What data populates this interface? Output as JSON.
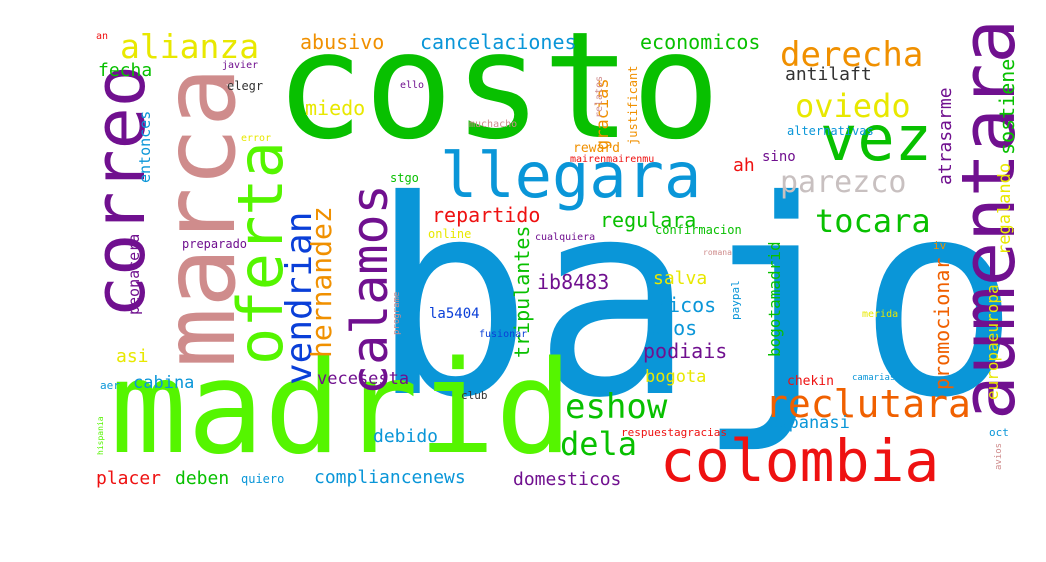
{
  "word_cloud": {
    "words": [
      {
        "text": "bajo",
        "color": "#0a96d8",
        "rotate": false
      },
      {
        "text": "costo",
        "color": "#08c000",
        "rotate": false
      },
      {
        "text": "madrid",
        "color": "#55f500",
        "rotate": false
      },
      {
        "text": "marca",
        "color": "#cf8c8c",
        "rotate": true
      },
      {
        "text": "correo",
        "color": "#70108f",
        "rotate": true
      },
      {
        "text": "aumentara",
        "color": "#70108f",
        "rotate": true
      },
      {
        "text": "oferta",
        "color": "#55f500",
        "rotate": true
      },
      {
        "text": "colombia",
        "color": "#ee1111",
        "rotate": false
      },
      {
        "text": "llegara",
        "color": "#0a96d8",
        "rotate": false
      },
      {
        "text": "vez",
        "color": "#08c000",
        "rotate": false
      },
      {
        "text": "calamos",
        "color": "#70108f",
        "rotate": true
      },
      {
        "text": "vendrian",
        "color": "#0a3fd8",
        "rotate": true
      },
      {
        "text": "hernandez",
        "color": "#f09000",
        "rotate": true
      },
      {
        "text": "reclutara",
        "color": "#f06000",
        "rotate": false
      },
      {
        "text": "eshow",
        "color": "#08c000",
        "rotate": false
      },
      {
        "text": "dela",
        "color": "#08c000",
        "rotate": false
      },
      {
        "text": "derecha",
        "color": "#f09000",
        "rotate": false
      },
      {
        "text": "oviedo",
        "color": "#e8e800",
        "rotate": false
      },
      {
        "text": "parezco",
        "color": "#c8c0c0",
        "rotate": false
      },
      {
        "text": "tocara",
        "color": "#08c000",
        "rotate": false
      },
      {
        "text": "alianza",
        "color": "#e8e800",
        "rotate": false
      },
      {
        "text": "cancelaciones",
        "color": "#0a96d8",
        "rotate": false
      },
      {
        "text": "economicos",
        "color": "#08c000",
        "rotate": false
      },
      {
        "text": "abusivo",
        "color": "#f09000",
        "rotate": false
      },
      {
        "text": "antilaft",
        "color": "#333333",
        "rotate": false
      },
      {
        "text": "fecha",
        "color": "#08c000",
        "rotate": false
      },
      {
        "text": "miedo",
        "color": "#e8e800",
        "rotate": false
      },
      {
        "text": "entonces",
        "color": "#0a96d8",
        "rotate": true
      },
      {
        "text": "gracias",
        "color": "#f09000",
        "rotate": true
      },
      {
        "text": "atrasarme",
        "color": "#70108f",
        "rotate": true
      },
      {
        "text": "sostiene",
        "color": "#08c000",
        "rotate": true
      },
      {
        "text": "regalando",
        "color": "#e8e800",
        "rotate": true
      },
      {
        "text": "repartido",
        "color": "#ee1111",
        "rotate": false
      },
      {
        "text": "regulara",
        "color": "#08c000",
        "rotate": false
      },
      {
        "text": "ah",
        "color": "#ee1111",
        "rotate": false
      },
      {
        "text": "sino",
        "color": "#70108f",
        "rotate": false
      },
      {
        "text": "tripulantes",
        "color": "#08c000",
        "rotate": true
      },
      {
        "text": "ib8483",
        "color": "#70108f",
        "rotate": false
      },
      {
        "text": "bogotamadrid",
        "color": "#08c000",
        "rotate": true
      },
      {
        "text": "salva",
        "color": "#e8e800",
        "rotate": false
      },
      {
        "text": "ricos",
        "color": "#0a96d8",
        "rotate": false
      },
      {
        "text": "ptos",
        "color": "#0a96d8",
        "rotate": false
      },
      {
        "text": "podiais",
        "color": "#70108f",
        "rotate": false
      },
      {
        "text": "bogota",
        "color": "#e8e800",
        "rotate": false
      },
      {
        "text": "promocionar",
        "color": "#f06000",
        "rotate": true
      },
      {
        "text": "europaeuropa",
        "color": "#e8e800",
        "rotate": true
      },
      {
        "text": "peonacera",
        "color": "#70108f",
        "rotate": true
      },
      {
        "text": "preparado",
        "color": "#70108f",
        "rotate": false
      },
      {
        "text": "asi",
        "color": "#e8e800",
        "rotate": false
      },
      {
        "text": "cabina",
        "color": "#0a96d8",
        "rotate": false
      },
      {
        "text": "vecesesta",
        "color": "#70108f",
        "rotate": false
      },
      {
        "text": "debido",
        "color": "#0a96d8",
        "rotate": false
      },
      {
        "text": "espanasi",
        "color": "#0a96d8",
        "rotate": false
      },
      {
        "text": "placer",
        "color": "#ee1111",
        "rotate": false
      },
      {
        "text": "deben",
        "color": "#08c000",
        "rotate": false
      },
      {
        "text": "quiero",
        "color": "#0a96d8",
        "rotate": false
      },
      {
        "text": "compliancenews",
        "color": "#0a96d8",
        "rotate": false
      },
      {
        "text": "domesticos",
        "color": "#70108f",
        "rotate": false
      },
      {
        "text": "la5404",
        "color": "#0a3fd8",
        "rotate": false
      },
      {
        "text": "online",
        "color": "#e8e800",
        "rotate": false
      },
      {
        "text": "confirmacion",
        "color": "#08c000",
        "rotate": false
      },
      {
        "text": "cualquiera",
        "color": "#70108f",
        "rotate": false
      },
      {
        "text": "reward",
        "color": "#f09000",
        "rotate": false
      },
      {
        "text": "mairenmairenmu",
        "color": "#ee1111",
        "rotate": false
      },
      {
        "text": "stgo",
        "color": "#08c000",
        "rotate": false
      },
      {
        "text": "alternativas",
        "color": "#0a96d8",
        "rotate": false
      },
      {
        "text": "muchacho",
        "color": "#cf8c8c",
        "rotate": false
      },
      {
        "text": "justificant",
        "color": "#f09000",
        "rotate": true
      },
      {
        "text": "relatos",
        "color": "#cf8c8c",
        "rotate": true
      },
      {
        "text": "error",
        "color": "#e8e800",
        "rotate": false
      },
      {
        "text": "javier",
        "color": "#70108f",
        "rotate": false
      },
      {
        "text": "elegr",
        "color": "#333333",
        "rotate": false
      },
      {
        "text": "ello",
        "color": "#70108f",
        "rotate": false
      },
      {
        "text": "an",
        "color": "#ee1111",
        "rotate": false
      },
      {
        "text": "programe",
        "color": "#cf8c8c",
        "rotate": true
      },
      {
        "text": "paypal",
        "color": "#0a96d8",
        "rotate": true
      },
      {
        "text": "romana",
        "color": "#cf8c8c",
        "rotate": false
      },
      {
        "text": "iv",
        "color": "#f09000",
        "rotate": false
      },
      {
        "text": "merida",
        "color": "#e8e800",
        "rotate": false
      },
      {
        "text": "fusionar",
        "color": "#0a3fd8",
        "rotate": false
      },
      {
        "text": "chekin",
        "color": "#ee1111",
        "rotate": false
      },
      {
        "text": "camarias",
        "color": "#0a96d8",
        "rotate": false
      },
      {
        "text": "club",
        "color": "#333333",
        "rotate": false
      },
      {
        "text": "aer",
        "color": "#0a96d8",
        "rotate": false
      },
      {
        "text": "hispania",
        "color": "#55f500",
        "rotate": true
      },
      {
        "text": "respuestagracias",
        "color": "#ee1111",
        "rotate": false
      },
      {
        "text": "oct",
        "color": "#0a96d8",
        "rotate": false
      },
      {
        "text": "avios",
        "color": "#cf8c8c",
        "rotate": true
      }
    ]
  }
}
